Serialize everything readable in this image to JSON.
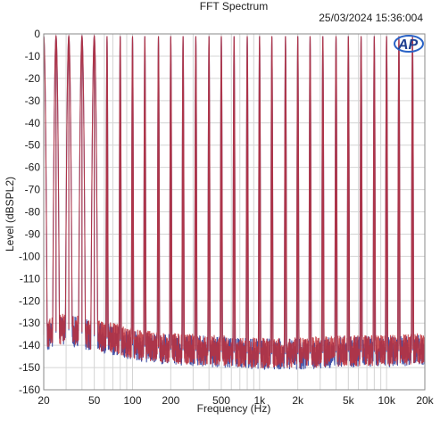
{
  "chart_data": {
    "type": "line",
    "title": "FFT Spectrum",
    "timestamp": "25/03/2024 15:36:004",
    "logo": "AP",
    "xlabel": "Frequency (Hz)",
    "ylabel": "Level (dBSPL2)",
    "x_scale": "log",
    "xlim": [
      20,
      20000
    ],
    "ylim": [
      -160,
      0
    ],
    "x_ticks": [
      {
        "value": 20,
        "label": "20"
      },
      {
        "value": 50,
        "label": "50"
      },
      {
        "value": 100,
        "label": "100"
      },
      {
        "value": 200,
        "label": "200"
      },
      {
        "value": 500,
        "label": "500"
      },
      {
        "value": 1000,
        "label": "1k"
      },
      {
        "value": 2000,
        "label": "2k"
      },
      {
        "value": 5000,
        "label": "5k"
      },
      {
        "value": 10000,
        "label": "10k"
      },
      {
        "value": 20000,
        "label": "20k"
      }
    ],
    "y_ticks": [
      0,
      -10,
      -20,
      -30,
      -40,
      -50,
      -60,
      -70,
      -80,
      -90,
      -100,
      -110,
      -120,
      -130,
      -140,
      -150,
      -160
    ],
    "grid": true,
    "tone_level_db": -1,
    "tone_frequencies": [
      20,
      25,
      31.5,
      40,
      50,
      63,
      80,
      100,
      125,
      160,
      200,
      250,
      315,
      400,
      500,
      630,
      800,
      1000,
      1250,
      1600,
      2000,
      2500,
      3150,
      4000,
      5000,
      6300,
      8000,
      10000,
      12500,
      16000
    ],
    "noise_floor": {
      "x": [
        20,
        30,
        50,
        80,
        100,
        200,
        500,
        1000,
        2000,
        5000,
        10000,
        20000
      ],
      "y": [
        -136,
        -133,
        -136,
        -138,
        -140,
        -142,
        -143,
        -144,
        -144,
        -143,
        -143,
        -142
      ]
    },
    "series": [
      {
        "color": "#2c3fa0"
      },
      {
        "color": "#c0303a"
      }
    ]
  }
}
